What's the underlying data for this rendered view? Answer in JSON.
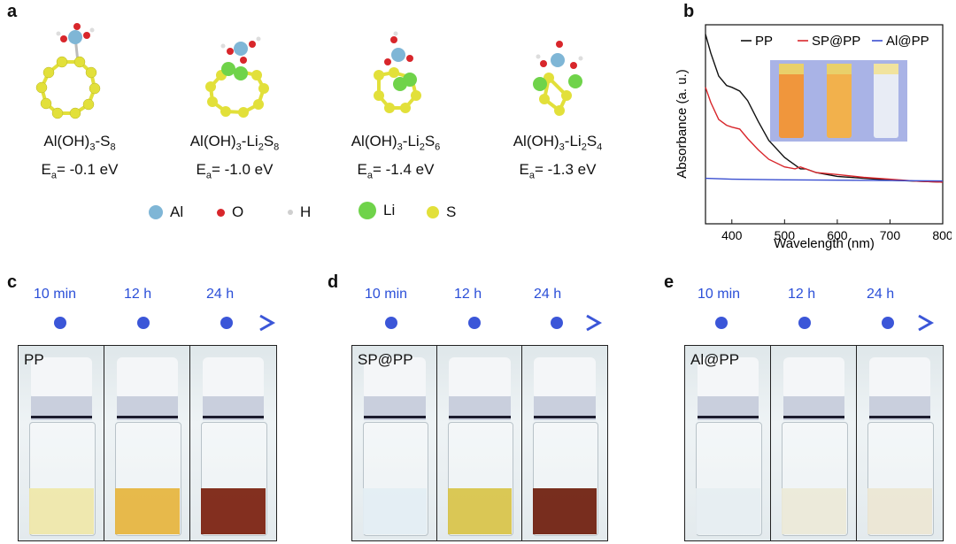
{
  "panels": {
    "a": "a",
    "b": "b",
    "c": "c",
    "d": "d",
    "e": "e"
  },
  "structures": [
    {
      "formula_main": "Al(OH)",
      "sub1": "3",
      "formula_rest": "-S",
      "sub2": "8",
      "tail": "",
      "sub3": "",
      "energy_prefix": "E",
      "energy_sub": "a",
      "energy_value": "= -0.1 eV"
    },
    {
      "formula_main": "Al(OH)",
      "sub1": "3",
      "formula_rest": "-Li",
      "sub2": "2",
      "tail": "S",
      "sub3": "8",
      "energy_prefix": "E",
      "energy_sub": "a",
      "energy_value": "= -1.0 eV"
    },
    {
      "formula_main": "Al(OH)",
      "sub1": "3",
      "formula_rest": "-Li",
      "sub2": "2",
      "tail": "S",
      "sub3": "6",
      "energy_prefix": "E",
      "energy_sub": "a",
      "energy_value": "= -1.4 eV"
    },
    {
      "formula_main": "Al(OH)",
      "sub1": "3",
      "formula_rest": "-Li",
      "sub2": "2",
      "tail": "S",
      "sub3": "4",
      "energy_prefix": "E",
      "energy_sub": "a",
      "energy_value": "= -1.3 eV"
    }
  ],
  "atom_legend": [
    {
      "label": "Al",
      "color": "#7fb6d6"
    },
    {
      "label": "O",
      "color": "#d8262b"
    },
    {
      "label": "H",
      "color": "#d9d9d9"
    },
    {
      "label": "Li",
      "color": "#6fd34a"
    },
    {
      "label": "S",
      "color": "#e2e03a"
    }
  ],
  "chart_data": {
    "type": "line",
    "xlabel": "Wavelength (nm)",
    "ylabel": "Absorbance (a. u.)",
    "xlim": [
      350,
      800
    ],
    "xticks": [
      400,
      500,
      600,
      700,
      800
    ],
    "legend_position": "top-right",
    "series": [
      {
        "name": "PP",
        "color": "#111111",
        "x": [
          350,
          360,
          375,
          390,
          400,
          415,
          430,
          450,
          470,
          500,
          520,
          530,
          540,
          560,
          600,
          650,
          700,
          750,
          800
        ],
        "y": [
          1.0,
          0.9,
          0.78,
          0.73,
          0.72,
          0.7,
          0.65,
          0.54,
          0.44,
          0.35,
          0.31,
          0.29,
          0.29,
          0.27,
          0.25,
          0.24,
          0.23,
          0.225,
          0.22
        ]
      },
      {
        "name": "SP@PP",
        "color": "#d8262b",
        "x": [
          350,
          360,
          375,
          390,
          400,
          415,
          430,
          450,
          470,
          500,
          520,
          530,
          540,
          560,
          600,
          650,
          700,
          750,
          800
        ],
        "y": [
          0.72,
          0.64,
          0.55,
          0.52,
          0.51,
          0.5,
          0.45,
          0.39,
          0.34,
          0.3,
          0.29,
          0.3,
          0.29,
          0.27,
          0.26,
          0.245,
          0.235,
          0.225,
          0.22
        ]
      },
      {
        "name": "Al@PP",
        "color": "#3a4fd0",
        "x": [
          350,
          400,
          500,
          600,
          700,
          800
        ],
        "y": [
          0.24,
          0.235,
          0.232,
          0.23,
          0.228,
          0.226
        ]
      }
    ]
  },
  "timeline": {
    "labels": [
      "10 min",
      "12 h",
      "24 h"
    ],
    "color": "#3b56d8"
  },
  "photo_groups": [
    {
      "label": "PP",
      "liquids": [
        "#efe7a8",
        "#e6b43c",
        "#7a1e0c"
      ]
    },
    {
      "label": "SP@PP",
      "liquids": [
        "#e3eef3",
        "#d8c347",
        "#6e1c0b"
      ]
    },
    {
      "label": "Al@PP",
      "liquids": [
        "#e6eef1",
        "#ece9d7",
        "#ebe6d3"
      ]
    }
  ]
}
